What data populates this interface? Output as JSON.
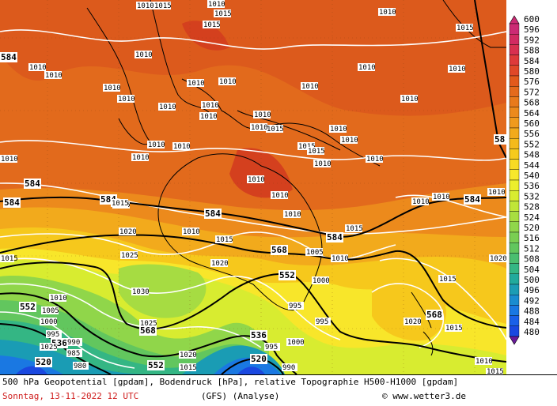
{
  "caption": {
    "description": "500 hPa Geopotential [gpdam], Bodendruck [hPa], relative Topographie H500-H1000 [gpdam]",
    "date": "Sonntag, 13-11-2022  12 UTC",
    "model": "(GFS)  (Analyse)",
    "copyright": "© www.wetter3.de"
  },
  "legend": {
    "levels": [
      "600",
      "596",
      "592",
      "588",
      "584",
      "580",
      "576",
      "572",
      "568",
      "564",
      "560",
      "556",
      "552",
      "548",
      "544",
      "540",
      "536",
      "532",
      "528",
      "524",
      "520",
      "516",
      "512",
      "508",
      "504",
      "500",
      "496",
      "492",
      "488",
      "484",
      "480"
    ],
    "colors": [
      "#cc2a74",
      "#d22a62",
      "#d83050",
      "#de3a3a",
      "#e04828",
      "#e25a1c",
      "#e46a1c",
      "#e87a1c",
      "#ec8a1c",
      "#f09a1c",
      "#f2aa1c",
      "#f4ba1c",
      "#f6ca1c",
      "#f8da24",
      "#f8e82c",
      "#ecee2c",
      "#d8ec30",
      "#c0e638",
      "#a8de40",
      "#90d64a",
      "#7ace52",
      "#62c65e",
      "#4abe70",
      "#34b684",
      "#22aa9c",
      "#1c9cb4",
      "#1a8cd0",
      "#1a78e2",
      "#1a60e8",
      "#1a48e0",
      "#6a1a9a"
    ]
  },
  "map": {
    "isohypse_labels": [
      {
        "text": "584"
      },
      {
        "text": "584"
      },
      {
        "text": "584"
      },
      {
        "text": "584"
      },
      {
        "text": "584"
      },
      {
        "text": "584"
      },
      {
        "text": "58"
      },
      {
        "text": "584"
      },
      {
        "text": "568"
      },
      {
        "text": "568"
      },
      {
        "text": "568"
      },
      {
        "text": "552"
      },
      {
        "text": "552"
      },
      {
        "text": "552"
      },
      {
        "text": "536"
      },
      {
        "text": "536"
      },
      {
        "text": "520"
      },
      {
        "text": "520"
      }
    ],
    "pressure_labels": [
      {
        "text": "1010"
      },
      {
        "text": "1015"
      },
      {
        "text": "1010"
      },
      {
        "text": "1015"
      },
      {
        "text": "1015"
      },
      {
        "text": "1010"
      },
      {
        "text": "1010"
      },
      {
        "text": "1010"
      },
      {
        "text": "1010"
      },
      {
        "text": "1010"
      },
      {
        "text": "1010"
      },
      {
        "text": "1010"
      },
      {
        "text": "1010"
      },
      {
        "text": "1010"
      },
      {
        "text": "1010"
      },
      {
        "text": "1010"
      },
      {
        "text": "1010"
      },
      {
        "text": "1010"
      },
      {
        "text": "1010"
      },
      {
        "text": "1015"
      },
      {
        "text": "1010"
      },
      {
        "text": "1015"
      },
      {
        "text": "1010"
      },
      {
        "text": "1010"
      },
      {
        "text": "1010"
      },
      {
        "text": "1010"
      },
      {
        "text": "1010"
      },
      {
        "text": "1010"
      },
      {
        "text": "1010"
      },
      {
        "text": "1010"
      },
      {
        "text": "1010"
      },
      {
        "text": "1010"
      },
      {
        "text": "1010"
      },
      {
        "text": "1010"
      },
      {
        "text": "1010"
      },
      {
        "text": "1010"
      },
      {
        "text": "1015"
      },
      {
        "text": "1010"
      },
      {
        "text": "1010"
      },
      {
        "text": "1015"
      },
      {
        "text": "1020"
      },
      {
        "text": "1025"
      },
      {
        "text": "1020"
      },
      {
        "text": "1015"
      },
      {
        "text": "1005"
      },
      {
        "text": "1010"
      },
      {
        "text": "1000"
      },
      {
        "text": "995"
      },
      {
        "text": "995"
      },
      {
        "text": "1015"
      },
      {
        "text": "1020"
      },
      {
        "text": "1030"
      },
      {
        "text": "1025"
      },
      {
        "text": "1025"
      },
      {
        "text": "1020"
      },
      {
        "text": "1015"
      },
      {
        "text": "1015"
      },
      {
        "text": "1000"
      },
      {
        "text": "995"
      },
      {
        "text": "990"
      },
      {
        "text": "1005"
      },
      {
        "text": "1000"
      },
      {
        "text": "995"
      },
      {
        "text": "990"
      },
      {
        "text": "985"
      },
      {
        "text": "980"
      },
      {
        "text": "1010"
      },
      {
        "text": "1020"
      },
      {
        "text": "1015"
      },
      {
        "text": "1010"
      },
      {
        "text": "1015"
      },
      {
        "text": "1015"
      },
      {
        "text": "1010"
      },
      {
        "text": "1015"
      },
      {
        "text": "1015"
      }
    ]
  }
}
